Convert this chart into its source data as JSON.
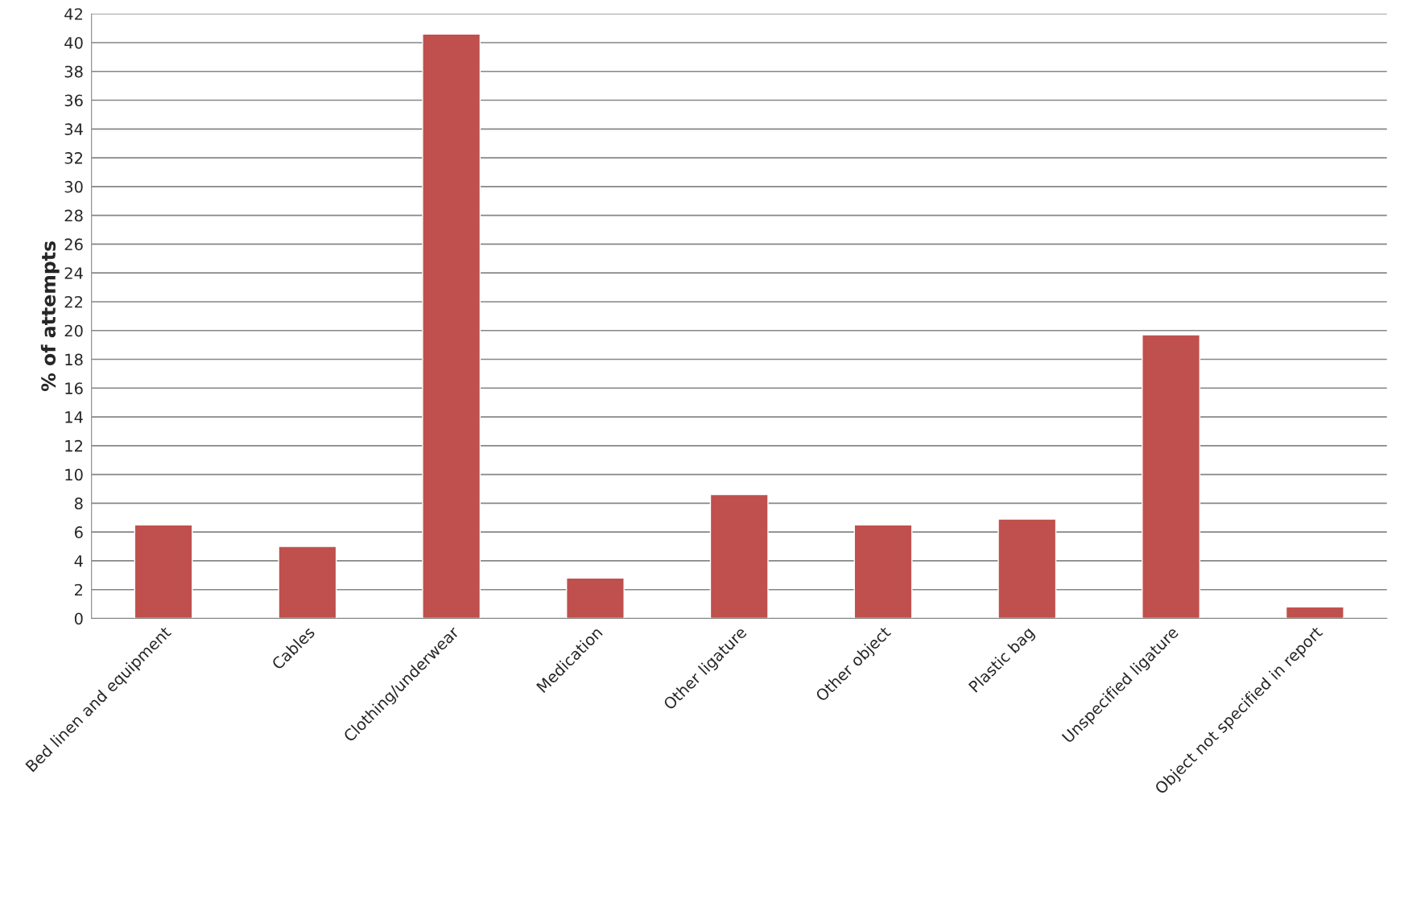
{
  "chart_data": {
    "type": "bar",
    "ylabel": "% of attempts",
    "categories": [
      "Bed linen and equipment",
      "Cables",
      "Clothing/underwear",
      "Medication",
      "Other ligature",
      "Other object",
      "Plastic bag",
      "Unspecified ligature",
      "Object not specified in report"
    ],
    "values": [
      6.5,
      5.0,
      40.6,
      2.8,
      8.6,
      6.5,
      6.9,
      19.7,
      0.8
    ],
    "color": "#c0504d",
    "ylim": [
      0,
      42
    ],
    "yticks": [
      0,
      2,
      4,
      6,
      8,
      10,
      12,
      14,
      16,
      18,
      20,
      22,
      24,
      26,
      28,
      30,
      32,
      34,
      36,
      38,
      40,
      42
    ],
    "grid": "y",
    "legend": false
  }
}
